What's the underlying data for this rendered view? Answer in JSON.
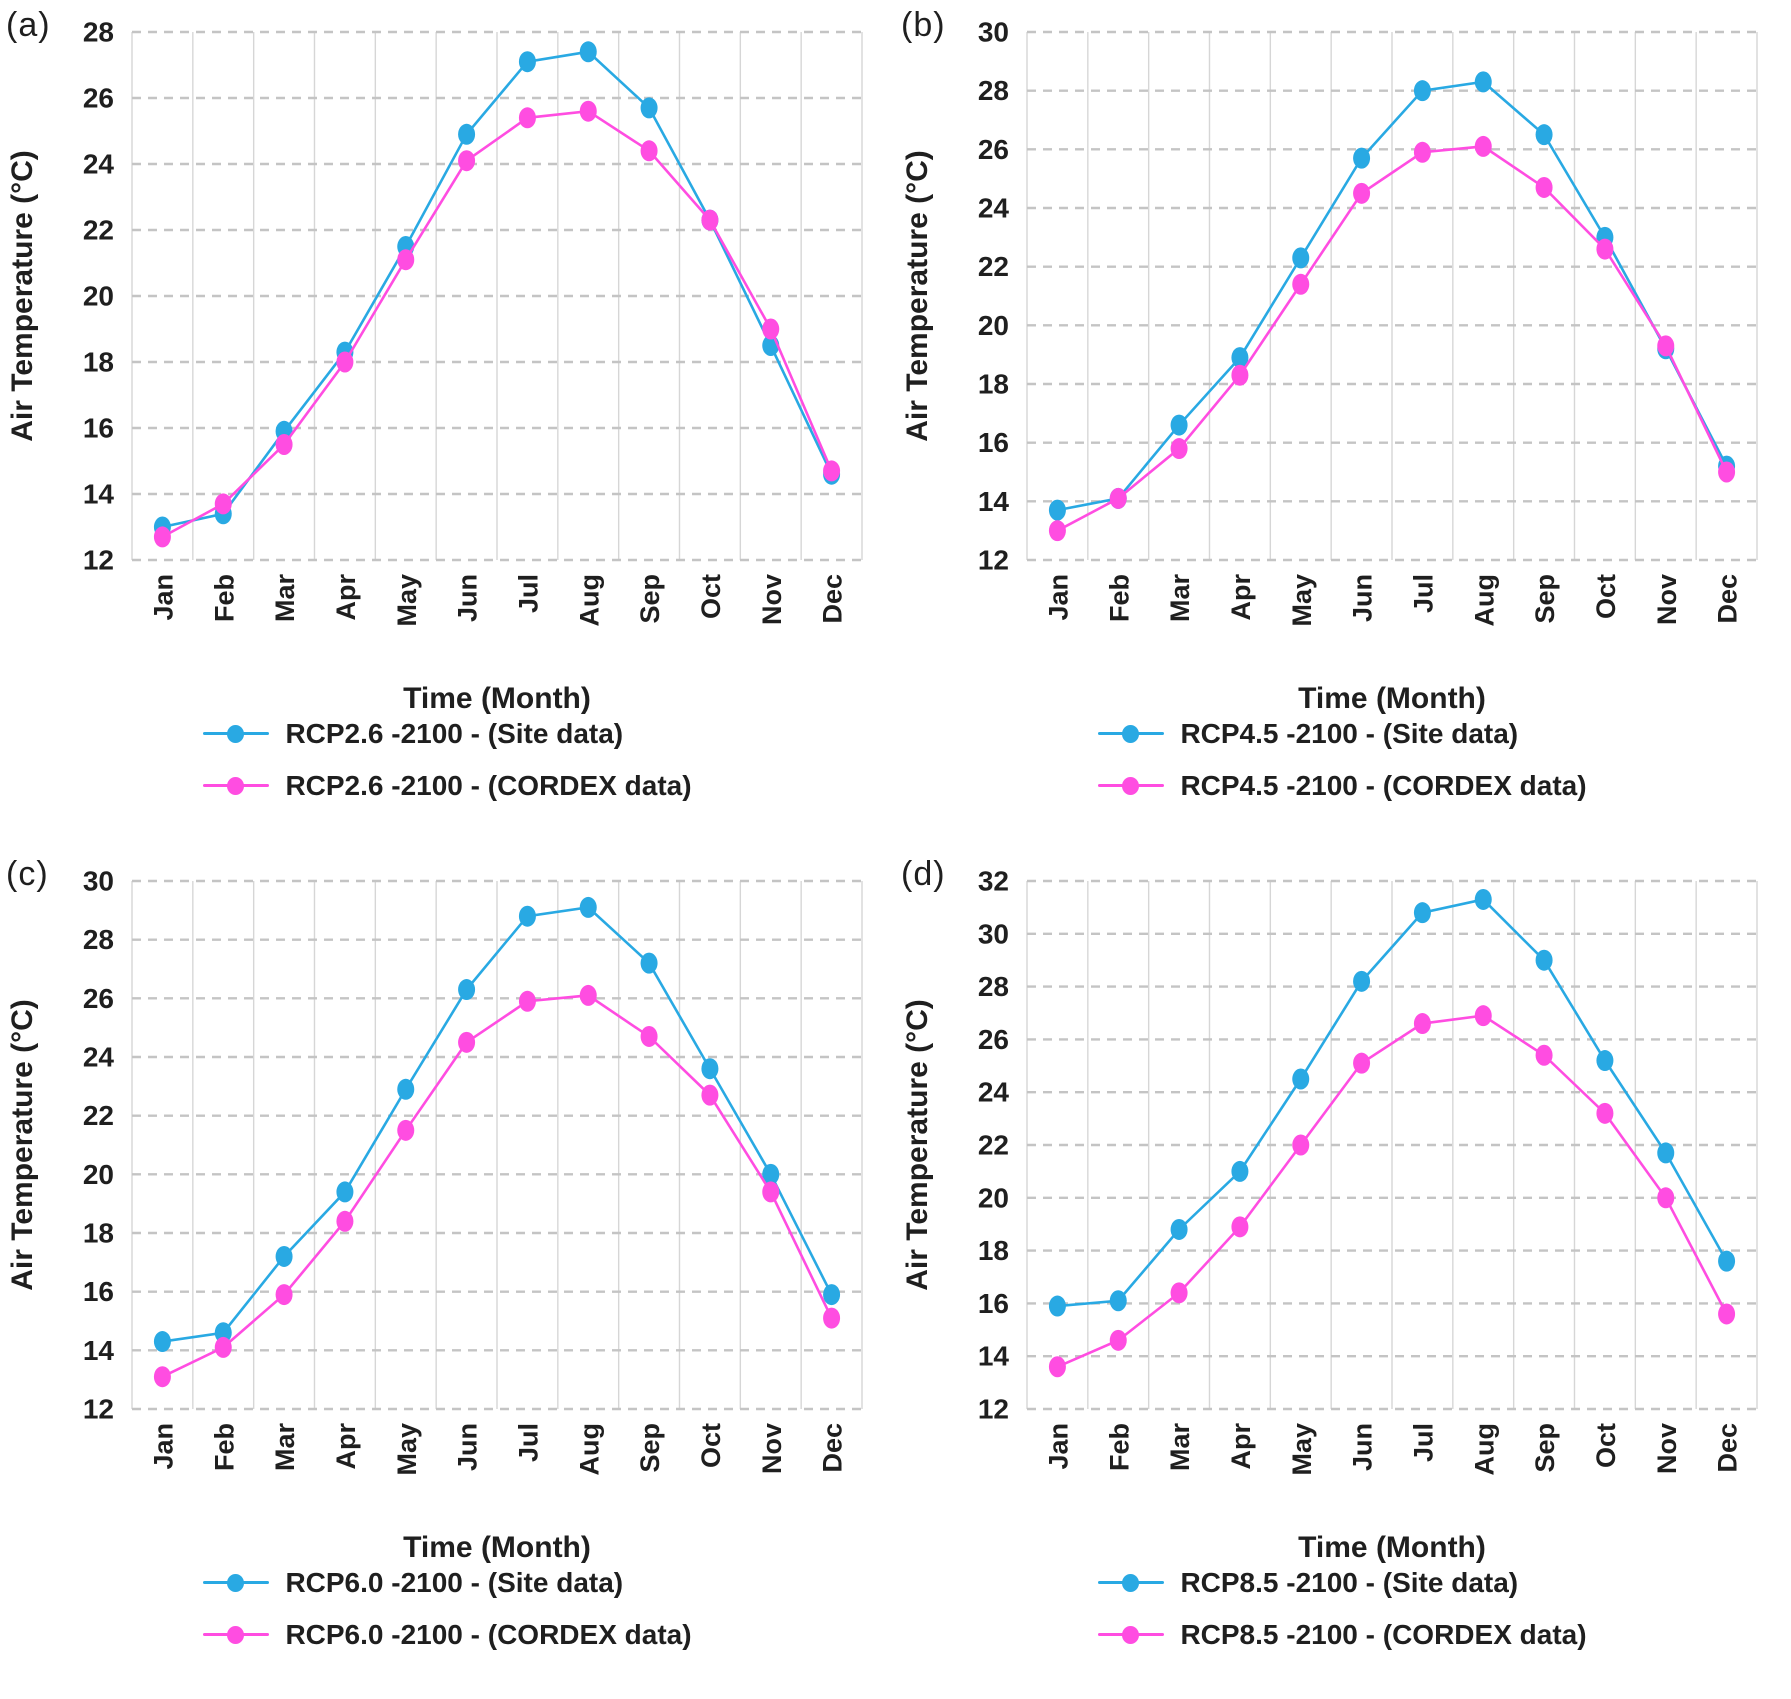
{
  "figure": {
    "colors": {
      "site": "#29A9E3",
      "cordex": "#FF4DE1",
      "grid_h": "#C4C4C4",
      "grid_v": "#D6D6D6",
      "text": "#1F1F1F"
    }
  },
  "chart_data": [
    {
      "type": "line",
      "panel_label": "(a)",
      "xlabel": "Time (Month)",
      "ylabel": "Air Temperature (°C)",
      "ylim": [
        12,
        28
      ],
      "yticks": [
        12,
        14,
        16,
        18,
        20,
        22,
        24,
        26,
        28
      ],
      "grid": true,
      "legend_position": "bottom",
      "categories": [
        "Jan",
        "Feb",
        "Mar",
        "Apr",
        "May",
        "Jun",
        "Jul",
        "Aug",
        "Sep",
        "Oct",
        "Nov",
        "Dec"
      ],
      "series": [
        {
          "name": "RCP2.6 -2100 - (Site data)",
          "color_key": "site",
          "values": [
            13.0,
            13.4,
            15.9,
            18.3,
            21.5,
            24.9,
            27.1,
            27.4,
            25.7,
            22.3,
            18.5,
            14.6
          ]
        },
        {
          "name": "RCP2.6 -2100 - (CORDEX data)",
          "color_key": "cordex",
          "values": [
            12.7,
            13.7,
            15.5,
            18.0,
            21.1,
            24.1,
            25.4,
            25.6,
            24.4,
            22.3,
            19.0,
            14.7
          ]
        }
      ]
    },
    {
      "type": "line",
      "panel_label": "(b)",
      "xlabel": "Time (Month)",
      "ylabel": "Air Temperature (°C)",
      "ylim": [
        12,
        30
      ],
      "yticks": [
        12,
        14,
        16,
        18,
        20,
        22,
        24,
        26,
        28,
        30
      ],
      "grid": true,
      "legend_position": "bottom",
      "categories": [
        "Jan",
        "Feb",
        "Mar",
        "Apr",
        "May",
        "Jun",
        "Jul",
        "Aug",
        "Sep",
        "Oct",
        "Nov",
        "Dec"
      ],
      "series": [
        {
          "name": "RCP4.5 -2100 - (Site data)",
          "color_key": "site",
          "values": [
            13.7,
            14.1,
            16.6,
            18.9,
            22.3,
            25.7,
            28.0,
            28.3,
            26.5,
            23.0,
            19.2,
            15.2
          ]
        },
        {
          "name": "RCP4.5 -2100 - (CORDEX data)",
          "color_key": "cordex",
          "values": [
            13.0,
            14.1,
            15.8,
            18.3,
            21.4,
            24.5,
            25.9,
            26.1,
            24.7,
            22.6,
            19.3,
            15.0
          ]
        }
      ]
    },
    {
      "type": "line",
      "panel_label": "(c)",
      "xlabel": "Time (Month)",
      "ylabel": "Air Temperature (°C)",
      "ylim": [
        12,
        30
      ],
      "yticks": [
        12,
        14,
        16,
        18,
        20,
        22,
        24,
        26,
        28,
        30
      ],
      "grid": true,
      "legend_position": "bottom",
      "categories": [
        "Jan",
        "Feb",
        "Mar",
        "Apr",
        "May",
        "Jun",
        "Jul",
        "Aug",
        "Sep",
        "Oct",
        "Nov",
        "Dec"
      ],
      "series": [
        {
          "name": "RCP6.0 -2100 - (Site data)",
          "color_key": "site",
          "values": [
            14.3,
            14.6,
            17.2,
            19.4,
            22.9,
            26.3,
            28.8,
            29.1,
            27.2,
            23.6,
            20.0,
            15.9
          ]
        },
        {
          "name": "RCP6.0 -2100 - (CORDEX data)",
          "color_key": "cordex",
          "values": [
            13.1,
            14.1,
            15.9,
            18.4,
            21.5,
            24.5,
            25.9,
            26.1,
            24.7,
            22.7,
            19.4,
            15.1
          ]
        }
      ]
    },
    {
      "type": "line",
      "panel_label": "(d)",
      "xlabel": "Time (Month)",
      "ylabel": "Air Temperature (°C)",
      "ylim": [
        12,
        32
      ],
      "yticks": [
        12,
        14,
        16,
        18,
        20,
        22,
        24,
        26,
        28,
        30,
        32
      ],
      "grid": true,
      "legend_position": "bottom",
      "categories": [
        "Jan",
        "Feb",
        "Mar",
        "Apr",
        "May",
        "Jun",
        "Jul",
        "Aug",
        "Sep",
        "Oct",
        "Nov",
        "Dec"
      ],
      "series": [
        {
          "name": "RCP8.5 -2100 - (Site data)",
          "color_key": "site",
          "values": [
            15.9,
            16.1,
            18.8,
            21.0,
            24.5,
            28.2,
            30.8,
            31.3,
            29.0,
            25.2,
            21.7,
            17.6
          ]
        },
        {
          "name": "RCP8.5 -2100 - (CORDEX data)",
          "color_key": "cordex",
          "values": [
            13.6,
            14.6,
            16.4,
            18.9,
            22.0,
            25.1,
            26.6,
            26.9,
            25.4,
            23.2,
            20.0,
            15.6
          ]
        }
      ]
    }
  ]
}
